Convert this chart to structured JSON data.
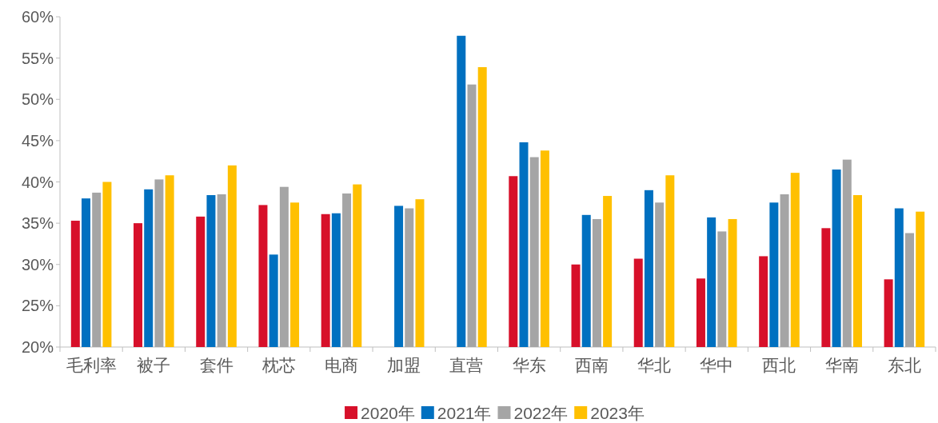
{
  "chart_data": {
    "type": "bar",
    "categories": [
      "毛利率",
      "被子",
      "套件",
      "枕芯",
      "电商",
      "加盟",
      "直营",
      "华东",
      "西南",
      "华北",
      "华中",
      "西北",
      "华南",
      "东北"
    ],
    "series": [
      {
        "name": "2020年",
        "color": "#d7102a",
        "values": [
          35.3,
          35.0,
          35.8,
          37.2,
          36.1,
          null,
          null,
          40.7,
          30.0,
          30.7,
          28.3,
          31.0,
          34.4,
          28.2
        ]
      },
      {
        "name": "2021年",
        "color": "#0070c0",
        "values": [
          38.0,
          39.1,
          38.4,
          31.2,
          36.2,
          37.1,
          57.7,
          44.8,
          36.0,
          39.0,
          35.7,
          37.5,
          41.5,
          36.8
        ]
      },
      {
        "name": "2022年",
        "color": "#a5a5a5",
        "values": [
          38.7,
          40.3,
          38.5,
          39.4,
          38.6,
          36.8,
          51.8,
          43.0,
          35.5,
          37.5,
          34.0,
          38.5,
          42.7,
          33.8
        ]
      },
      {
        "name": "2023年",
        "color": "#ffc000",
        "values": [
          40.0,
          40.8,
          42.0,
          37.5,
          39.7,
          37.9,
          53.9,
          43.8,
          38.3,
          40.8,
          35.5,
          41.1,
          38.4,
          36.4
        ]
      }
    ],
    "ylim": [
      20,
      60
    ],
    "yticks": [
      {
        "value": 20,
        "label": "20%"
      },
      {
        "value": 25,
        "label": "25%"
      },
      {
        "value": 30,
        "label": "30%"
      },
      {
        "value": 35,
        "label": "35%"
      },
      {
        "value": 40,
        "label": "40%"
      },
      {
        "value": 45,
        "label": "45%"
      },
      {
        "value": 50,
        "label": "50%"
      },
      {
        "value": 55,
        "label": "55%"
      },
      {
        "value": 60,
        "label": "60%"
      }
    ],
    "grid": false,
    "legend": "bottom"
  }
}
